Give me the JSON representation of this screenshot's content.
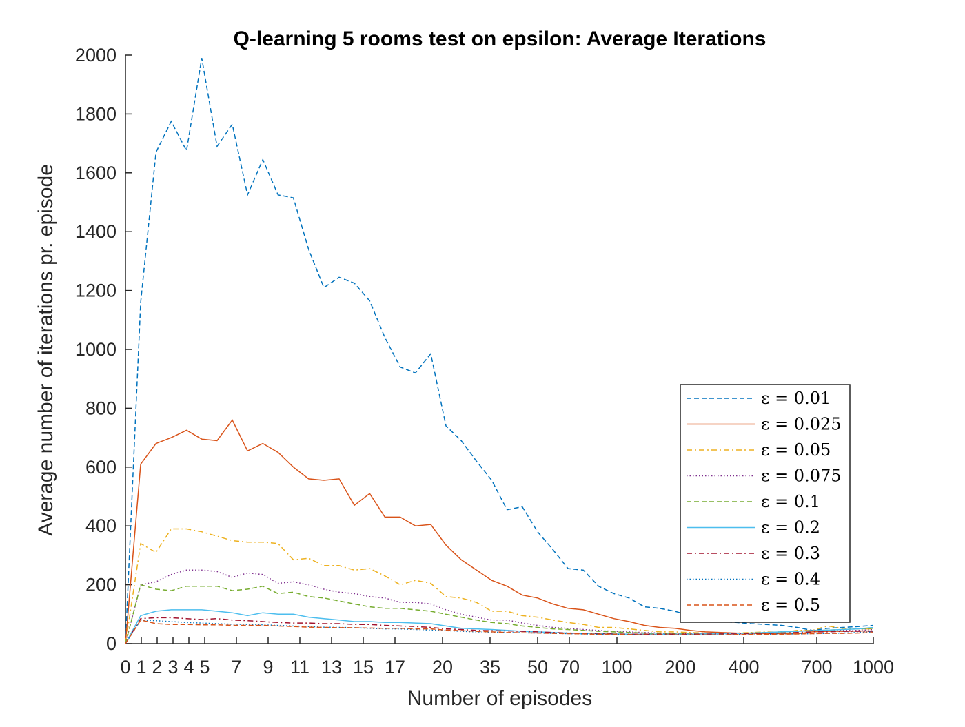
{
  "chart_data": {
    "type": "line",
    "title": "Q-learning 5 rooms test on epsilon: Average Iterations",
    "xlabel": "Number of episodes",
    "ylabel": "Average number of iterations pr. episode",
    "x_tick_labels": [
      "0",
      "1",
      "2",
      "3",
      "4",
      "5",
      "7",
      "9",
      "11",
      "13",
      "15",
      "17",
      "20",
      "35",
      "50",
      "70",
      "100",
      "200",
      "400",
      "700",
      "1000"
    ],
    "y_ticks": [
      0,
      200,
      400,
      600,
      800,
      1000,
      1200,
      1400,
      1600,
      1800,
      2000
    ],
    "ylim": [
      0,
      2000
    ],
    "grid": false,
    "legend_position": "right",
    "x": [
      0,
      1,
      2,
      3,
      4,
      5,
      6,
      7,
      8,
      9,
      10,
      11,
      12,
      13,
      14,
      15,
      16,
      17,
      18,
      19,
      20,
      25,
      30,
      35,
      40,
      45,
      50,
      55,
      60,
      70,
      80,
      90,
      100,
      125,
      150,
      175,
      200,
      250,
      300,
      350,
      400,
      450,
      500,
      550,
      600,
      650,
      700,
      800,
      900,
      1000
    ],
    "series": [
      {
        "name": "ε = 0.01",
        "color": "#0072BD",
        "dash": "dashed",
        "values": [
          0,
          1160,
          1670,
          1775,
          1675,
          1990,
          1690,
          1765,
          1525,
          1645,
          1525,
          1515,
          1340,
          1210,
          1245,
          1225,
          1165,
          1040,
          940,
          920,
          985,
          740,
          690,
          620,
          555,
          455,
          465,
          380,
          320,
          255,
          250,
          195,
          170,
          155,
          125,
          120,
          110,
          95,
          85,
          75,
          72,
          68,
          65,
          62,
          55,
          45,
          52,
          55,
          58,
          62
        ]
      },
      {
        "name": "ε = 0.025",
        "color": "#D95319",
        "dash": "solid",
        "values": [
          0,
          610,
          680,
          700,
          725,
          695,
          690,
          760,
          655,
          680,
          650,
          600,
          560,
          555,
          560,
          470,
          510,
          430,
          430,
          400,
          405,
          335,
          285,
          250,
          215,
          195,
          165,
          155,
          135,
          120,
          115,
          100,
          85,
          75,
          62,
          55,
          52,
          45,
          40,
          38,
          36,
          35,
          34,
          34,
          33,
          40,
          42,
          42,
          43,
          43
        ]
      },
      {
        "name": "ε = 0.05",
        "color": "#EDB120",
        "dash": "dashdot",
        "values": [
          0,
          340,
          310,
          390,
          390,
          380,
          365,
          350,
          345,
          345,
          340,
          285,
          290,
          265,
          265,
          250,
          255,
          230,
          200,
          215,
          205,
          160,
          155,
          140,
          110,
          110,
          95,
          90,
          80,
          72,
          65,
          55,
          55,
          50,
          45,
          40,
          40,
          38,
          36,
          34,
          36,
          38,
          40,
          38,
          45,
          45,
          60,
          52,
          50,
          50
        ]
      },
      {
        "name": "ε = 0.075",
        "color": "#7E2F8E",
        "dash": "dotted",
        "values": [
          0,
          200,
          210,
          235,
          250,
          250,
          245,
          225,
          240,
          235,
          205,
          210,
          200,
          185,
          175,
          170,
          160,
          155,
          140,
          140,
          135,
          115,
          100,
          90,
          80,
          80,
          70,
          62,
          55,
          52,
          48,
          45,
          42,
          40,
          38,
          36,
          35,
          34,
          33,
          33,
          35,
          36,
          38,
          40,
          42,
          45,
          45,
          45,
          45,
          48
        ]
      },
      {
        "name": "ε = 0.1",
        "color": "#77AC30",
        "dash": "dashed",
        "values": [
          0,
          200,
          185,
          180,
          195,
          195,
          195,
          180,
          185,
          195,
          170,
          175,
          160,
          155,
          145,
          135,
          125,
          120,
          120,
          115,
          110,
          100,
          90,
          80,
          72,
          68,
          60,
          55,
          50,
          48,
          45,
          42,
          40,
          38,
          36,
          35,
          34,
          33,
          33,
          34,
          35,
          36,
          38,
          40,
          42,
          44,
          46,
          48,
          50,
          52
        ]
      },
      {
        "name": "ε = 0.2",
        "color": "#4DBEEE",
        "dash": "solid",
        "values": [
          0,
          95,
          110,
          115,
          115,
          115,
          110,
          105,
          95,
          105,
          100,
          100,
          90,
          85,
          80,
          75,
          75,
          72,
          72,
          70,
          68,
          60,
          52,
          50,
          48,
          45,
          42,
          40,
          38,
          36,
          35,
          34,
          33,
          32,
          32,
          32,
          32,
          32,
          33,
          34,
          35,
          36,
          38,
          40,
          42,
          44,
          46,
          48,
          50,
          55
        ]
      },
      {
        "name": "ε = 0.3",
        "color": "#A2142F",
        "dash": "dashdot",
        "values": [
          0,
          85,
          88,
          88,
          85,
          82,
          85,
          80,
          78,
          75,
          72,
          70,
          70,
          68,
          68,
          65,
          65,
          62,
          60,
          58,
          55,
          50,
          48,
          45,
          44,
          43,
          42,
          40,
          38,
          36,
          35,
          34,
          33,
          32,
          32,
          32,
          32,
          32,
          32,
          33,
          33,
          34,
          35,
          36,
          38,
          40,
          40,
          42,
          42,
          42
        ]
      },
      {
        "name": "ε = 0.4",
        "color": "#0072BD",
        "dash": "dotted",
        "values": [
          0,
          80,
          78,
          75,
          72,
          70,
          68,
          66,
          65,
          64,
          62,
          60,
          58,
          56,
          55,
          54,
          52,
          50,
          50,
          48,
          46,
          44,
          42,
          40,
          39,
          38,
          37,
          36,
          35,
          34,
          33,
          32,
          32,
          31,
          30,
          30,
          30,
          30,
          30,
          31,
          31,
          32,
          32,
          33,
          33,
          34,
          35,
          36,
          38,
          40
        ]
      },
      {
        "name": "ε = 0.5",
        "color": "#D95319",
        "dash": "dashed",
        "values": [
          0,
          80,
          68,
          65,
          65,
          64,
          64,
          62,
          62,
          62,
          60,
          58,
          56,
          55,
          54,
          54,
          53,
          52,
          52,
          50,
          50,
          46,
          44,
          42,
          40,
          38,
          37,
          36,
          35,
          34,
          33,
          32,
          32,
          31,
          30,
          30,
          30,
          30,
          30,
          30,
          31,
          31,
          32,
          32,
          33,
          34,
          35,
          35,
          36,
          38
        ]
      }
    ]
  }
}
